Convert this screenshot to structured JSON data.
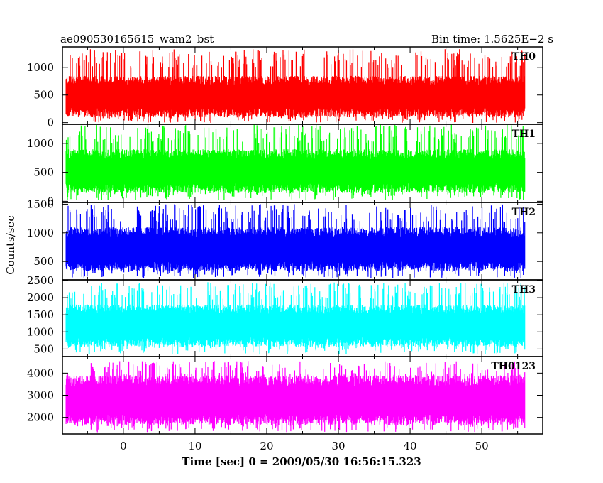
{
  "header": {
    "title": "ae090530165615_wam2_bst",
    "bin_time": "Bin time: 1.5625E−2 s"
  },
  "chart_data": {
    "type": "line",
    "xlabel": "Time [sec] 0 = 2009/05/30 16:56:15.323",
    "ylabel": "Counts/sec",
    "xlim": [
      -8.5,
      58.5
    ],
    "data_x_range": [
      -8.0,
      56.0
    ],
    "xticks": [
      0,
      10,
      20,
      30,
      40,
      50
    ],
    "panels": [
      {
        "name": "TH0",
        "color": "#ff0000",
        "ylim": [
          -30,
          1370
        ],
        "yticks": [
          0,
          500,
          1000
        ],
        "band": [
          95,
          845
        ],
        "peak": 1330
      },
      {
        "name": "TH1",
        "color": "#00ff00",
        "ylim": [
          -20,
          1330
        ],
        "yticks": [
          0,
          500,
          1000
        ],
        "band": [
          140,
          900
        ],
        "peak": 1330
      },
      {
        "name": "TH2",
        "color": "#0000ff",
        "ylim": [
          180,
          1530
        ],
        "yticks": [
          500,
          1000,
          1500
        ],
        "band": [
          330,
          1100
        ],
        "peak": 1500
      },
      {
        "name": "TH3",
        "color": "#00ffff",
        "ylim": [
          280,
          2520
        ],
        "yticks": [
          500,
          1000,
          1500,
          2000,
          2500
        ],
        "band": [
          560,
          1800
        ],
        "peak": 2450
      },
      {
        "name": "TH0123",
        "color": "#ff00ff",
        "ylim": [
          1250,
          4750
        ],
        "yticks": [
          2000,
          3000,
          4000
        ],
        "band": [
          1650,
          3900
        ],
        "peak": 4550
      }
    ]
  }
}
